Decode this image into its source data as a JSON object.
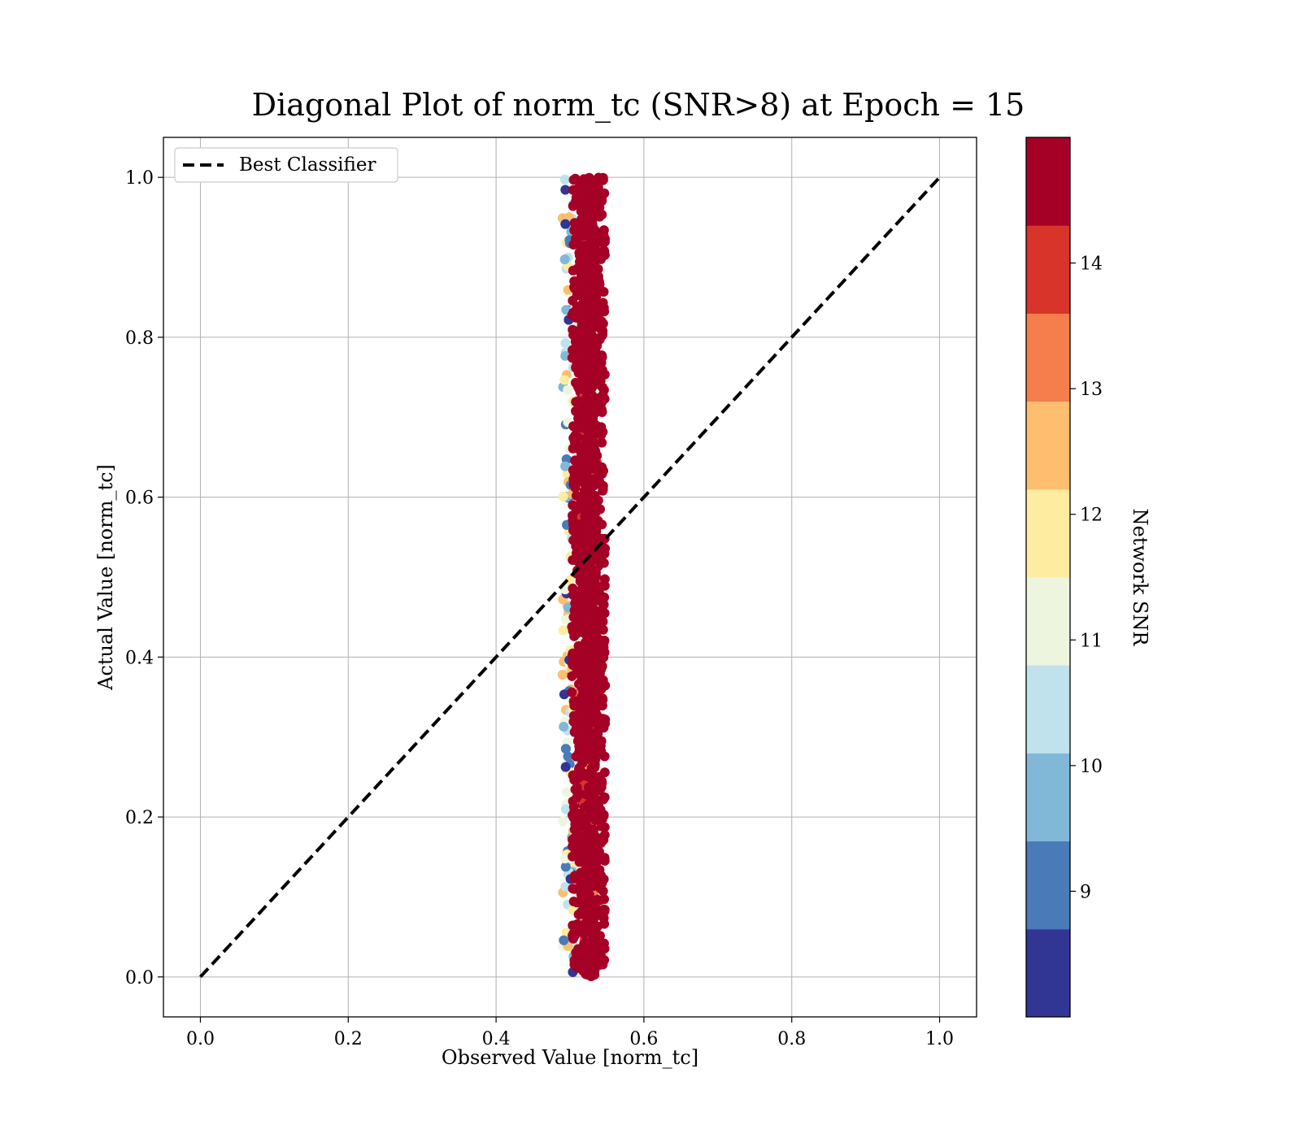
{
  "chart_data": {
    "type": "scatter",
    "title": "Diagonal Plot of norm_tc (SNR>8) at Epoch = 15",
    "xlabel": "Observed Value [norm_tc]",
    "ylabel": "Actual Value [norm_tc]",
    "xlim": [
      -0.05,
      1.05
    ],
    "ylim": [
      -0.05,
      1.05
    ],
    "xticks": [
      "0.0",
      "0.2",
      "0.4",
      "0.6",
      "0.8",
      "1.0"
    ],
    "yticks": [
      "0.0",
      "0.2",
      "0.4",
      "0.6",
      "0.8",
      "1.0"
    ],
    "grid": true,
    "legend": {
      "placement": "upper-left",
      "entries": [
        "Best Classifier"
      ]
    },
    "reference_line": {
      "name": "Best Classifier",
      "x": [
        0.0,
        1.0
      ],
      "y": [
        0.0,
        1.0
      ],
      "style": "dashed",
      "color": "#000000"
    },
    "scatter_description": {
      "x_center": 0.525,
      "x_spread_min": 0.49,
      "x_spread_max": 0.585,
      "y_range": [
        0.0,
        1.0
      ],
      "dominant_color": "#a50026"
    },
    "colorbar": {
      "label": "Network SNR",
      "range": [
        8.0,
        15.0
      ],
      "ticks": [
        "9",
        "10",
        "11",
        "12",
        "13",
        "14"
      ],
      "bins": [
        {
          "from": 8.0,
          "to": 8.7,
          "color": "#313695"
        },
        {
          "from": 8.7,
          "to": 9.4,
          "color": "#4a7ab8"
        },
        {
          "from": 9.4,
          "to": 10.1,
          "color": "#82b8d7"
        },
        {
          "from": 10.1,
          "to": 10.8,
          "color": "#bfe2ec"
        },
        {
          "from": 10.8,
          "to": 11.5,
          "color": "#eef5de"
        },
        {
          "from": 11.5,
          "to": 12.2,
          "color": "#feeda1"
        },
        {
          "from": 12.2,
          "to": 12.9,
          "color": "#fdbe70"
        },
        {
          "from": 12.9,
          "to": 13.6,
          "color": "#f57e4c"
        },
        {
          "from": 13.6,
          "to": 14.3,
          "color": "#d93429"
        },
        {
          "from": 14.3,
          "to": 15.0,
          "color": "#a50026"
        }
      ]
    }
  }
}
